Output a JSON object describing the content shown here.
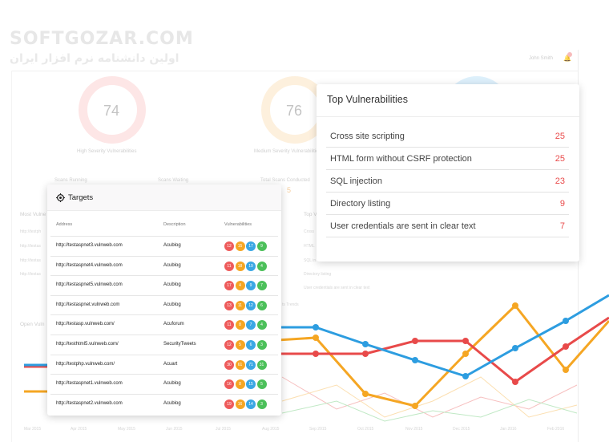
{
  "watermark": {
    "main": "SOFTGOZAR.COM",
    "sub": "اولین دانشنامه نرم افزار ایران"
  },
  "header": {
    "user": "John Smith"
  },
  "background": {
    "gauges": [
      {
        "value": "74",
        "label": "High Severity Vulnerabilities",
        "color": "#fde2e2"
      },
      {
        "value": "76",
        "label": "Medium Severity Vulnerabilities",
        "color": "#fdeed8"
      }
    ],
    "stats": [
      {
        "label": "Scans Running"
      },
      {
        "label": "Scans Waiting"
      },
      {
        "label": "Total Scans Conducted",
        "value": "5"
      }
    ],
    "most_vulnerable_title": "Most Vulne",
    "open_vulns_title": "Open Vuln",
    "top_short_title": "Top V",
    "trends_label": "ts Trends",
    "bg_list": [
      "Cross",
      "HTML",
      "SQL in",
      "Directory listing",
      "User credentials are sent in clear text"
    ],
    "months": [
      "Mar 2015",
      "Apr 2015",
      "May 2015",
      "Jun 2015",
      "Jul 2015",
      "Aug 2015",
      "Sep 2015",
      "Oct 2015",
      "Nov 2015",
      "Dec 2015",
      "Jan 2016",
      "Feb 2016"
    ]
  },
  "top_vulnerabilities": {
    "title": "Top Vulnerabilities",
    "items": [
      {
        "name": "Cross site scripting",
        "count": "25"
      },
      {
        "name": "HTML form without CSRF protection",
        "count": "25"
      },
      {
        "name": "SQL injection",
        "count": "23"
      },
      {
        "name": "Directory listing",
        "count": "9"
      },
      {
        "name": "User credentials are sent in clear text",
        "count": "7"
      }
    ]
  },
  "targets": {
    "title": "Targets",
    "icon": "target-icon",
    "columns": {
      "address": "Address",
      "description": "Description",
      "vulnerabilities": "Vulnerabilities"
    },
    "rows": [
      {
        "address": "http://testaspnet3.vulnweb.com",
        "description": "Acublog",
        "high": "12",
        "medium": "15",
        "low": "17",
        "info": "9"
      },
      {
        "address": "http://testaspnet4.vulnweb.com",
        "description": "Acublog",
        "high": "11",
        "medium": "18",
        "low": "19",
        "info": "4"
      },
      {
        "address": "http://testaspnet5.vulnweb.com",
        "description": "Acublog",
        "high": "17",
        "medium": "4",
        "low": "9",
        "info": "7"
      },
      {
        "address": "http://testaspnet.vulnweb.com",
        "description": "Acublog",
        "high": "13",
        "medium": "11",
        "low": "12",
        "info": "6"
      },
      {
        "address": "http://testasp.vulnweb.com/",
        "description": "Acuforum",
        "high": "11",
        "medium": "8",
        "low": "7",
        "info": "4"
      },
      {
        "address": "http://testhtml5.vulnweb.com/",
        "description": "SecurityTweets",
        "high": "12",
        "medium": "5",
        "low": "6",
        "info": "3"
      },
      {
        "address": "http://testphp.vulnweb.com/",
        "description": "Acuart",
        "high": "30",
        "medium": "61",
        "low": "71",
        "info": "31"
      },
      {
        "address": "http://testaspnet1.vulnweb.com",
        "description": "Acublog",
        "high": "16",
        "medium": "8",
        "low": "15",
        "info": "5"
      },
      {
        "address": "http://testaspnet2.vulnweb.com",
        "description": "Acublog",
        "high": "19",
        "medium": "16",
        "low": "14",
        "info": "3"
      }
    ]
  },
  "colors": {
    "red": "#e84a4a",
    "orange": "#f5a623",
    "blue": "#2d9de0",
    "green": "#4cc05a"
  }
}
